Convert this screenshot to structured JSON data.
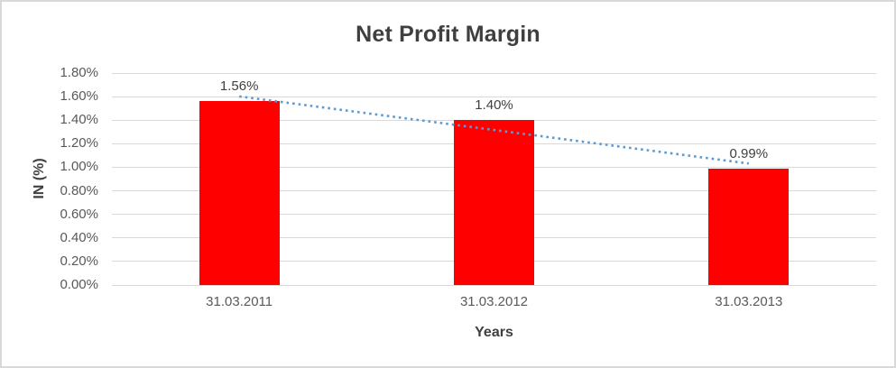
{
  "chart_data": {
    "type": "bar",
    "title": "Net Profit Margin",
    "categories": [
      "31.03.2011",
      "31.03.2012",
      "31.03.2013"
    ],
    "values": [
      1.56,
      1.4,
      0.99
    ],
    "data_labels": [
      "1.56%",
      "1.40%",
      "0.99%"
    ],
    "xlabel": "Years",
    "ylabel": "IN (%)",
    "ylim": [
      0,
      1.8
    ],
    "ytick_step": 0.2,
    "ytick_labels": [
      "0.00%",
      "0.20%",
      "0.40%",
      "0.60%",
      "0.80%",
      "1.00%",
      "1.20%",
      "1.40%",
      "1.60%",
      "1.80%"
    ],
    "grid": true,
    "legend": "none",
    "trendline": {
      "type": "linear",
      "style": "dotted"
    }
  },
  "colors": {
    "bar": "#ff0000",
    "trendline": "#5b9bd5",
    "gridline": "#d9d9d9",
    "tick_text": "#595959",
    "title_text": "#3f3f3f",
    "border": "#d9d9d9"
  }
}
